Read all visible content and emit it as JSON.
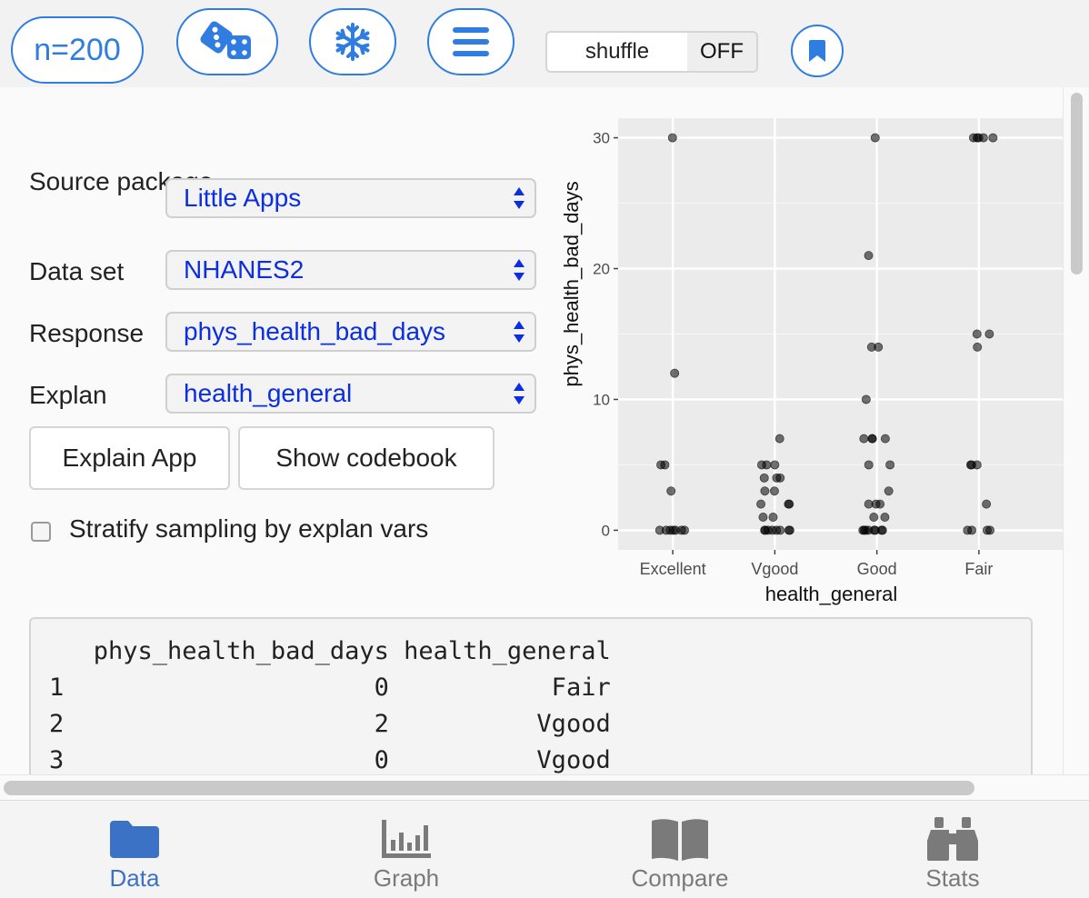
{
  "toolbar": {
    "n_label": "n=200",
    "shuffle_label": "shuffle",
    "shuffle_state": "OFF",
    "icons": [
      "dice-icon",
      "snowflake-icon",
      "menu-icon",
      "bookmark-icon"
    ],
    "accent_color": "#2f7de1"
  },
  "controls": {
    "source_label": "Source package",
    "source_value": "Little Apps",
    "dataset_label": "Data set",
    "dataset_value": "NHANES2",
    "response_label": "Response",
    "response_value": "phys_health_bad_days",
    "explan_label": "Explan",
    "explan_value": "health_general",
    "explain_button": "Explain App",
    "codebook_button": "Show codebook",
    "stratify_label": "Stratify sampling by explan vars",
    "stratify_checked": false
  },
  "chart_data": {
    "type": "scatter",
    "xlabel": "health_general",
    "ylabel": "phys_health_bad_days",
    "categories": [
      "Excellent",
      "Vgood",
      "Good",
      "Fair"
    ],
    "y_ticks": [
      0,
      10,
      20,
      30
    ],
    "ylim": [
      -1.5,
      31.5
    ],
    "jitter": true,
    "grid": true,
    "points": [
      {
        "x": "Excellent",
        "y": 30
      },
      {
        "x": "Excellent",
        "y": 12
      },
      {
        "x": "Excellent",
        "y": 5
      },
      {
        "x": "Excellent",
        "y": 5
      },
      {
        "x": "Excellent",
        "y": 3
      },
      {
        "x": "Excellent",
        "y": 0
      },
      {
        "x": "Excellent",
        "y": 0
      },
      {
        "x": "Excellent",
        "y": 0
      },
      {
        "x": "Excellent",
        "y": 0
      },
      {
        "x": "Excellent",
        "y": 0
      },
      {
        "x": "Excellent",
        "y": 0
      },
      {
        "x": "Excellent",
        "y": 0
      },
      {
        "x": "Vgood",
        "y": 7
      },
      {
        "x": "Vgood",
        "y": 5
      },
      {
        "x": "Vgood",
        "y": 5
      },
      {
        "x": "Vgood",
        "y": 5
      },
      {
        "x": "Vgood",
        "y": 4
      },
      {
        "x": "Vgood",
        "y": 4
      },
      {
        "x": "Vgood",
        "y": 4
      },
      {
        "x": "Vgood",
        "y": 3
      },
      {
        "x": "Vgood",
        "y": 3
      },
      {
        "x": "Vgood",
        "y": 2
      },
      {
        "x": "Vgood",
        "y": 2
      },
      {
        "x": "Vgood",
        "y": 2
      },
      {
        "x": "Vgood",
        "y": 1
      },
      {
        "x": "Vgood",
        "y": 1
      },
      {
        "x": "Vgood",
        "y": 0
      },
      {
        "x": "Vgood",
        "y": 0
      },
      {
        "x": "Vgood",
        "y": 0
      },
      {
        "x": "Vgood",
        "y": 0
      },
      {
        "x": "Vgood",
        "y": 0
      },
      {
        "x": "Vgood",
        "y": 0
      },
      {
        "x": "Vgood",
        "y": 0
      },
      {
        "x": "Vgood",
        "y": 0
      },
      {
        "x": "Good",
        "y": 30
      },
      {
        "x": "Good",
        "y": 21
      },
      {
        "x": "Good",
        "y": 14
      },
      {
        "x": "Good",
        "y": 14
      },
      {
        "x": "Good",
        "y": 10
      },
      {
        "x": "Good",
        "y": 7
      },
      {
        "x": "Good",
        "y": 7
      },
      {
        "x": "Good",
        "y": 7
      },
      {
        "x": "Good",
        "y": 7
      },
      {
        "x": "Good",
        "y": 5
      },
      {
        "x": "Good",
        "y": 5
      },
      {
        "x": "Good",
        "y": 3
      },
      {
        "x": "Good",
        "y": 2
      },
      {
        "x": "Good",
        "y": 2
      },
      {
        "x": "Good",
        "y": 2
      },
      {
        "x": "Good",
        "y": 1
      },
      {
        "x": "Good",
        "y": 1
      },
      {
        "x": "Good",
        "y": 0
      },
      {
        "x": "Good",
        "y": 0
      },
      {
        "x": "Good",
        "y": 0
      },
      {
        "x": "Good",
        "y": 0
      },
      {
        "x": "Good",
        "y": 0
      },
      {
        "x": "Good",
        "y": 0
      },
      {
        "x": "Good",
        "y": 0
      },
      {
        "x": "Good",
        "y": 0
      },
      {
        "x": "Fair",
        "y": 30
      },
      {
        "x": "Fair",
        "y": 30
      },
      {
        "x": "Fair",
        "y": 30
      },
      {
        "x": "Fair",
        "y": 30
      },
      {
        "x": "Fair",
        "y": 30
      },
      {
        "x": "Fair",
        "y": 15
      },
      {
        "x": "Fair",
        "y": 15
      },
      {
        "x": "Fair",
        "y": 14
      },
      {
        "x": "Fair",
        "y": 5
      },
      {
        "x": "Fair",
        "y": 5
      },
      {
        "x": "Fair",
        "y": 5
      },
      {
        "x": "Fair",
        "y": 2
      },
      {
        "x": "Fair",
        "y": 0
      },
      {
        "x": "Fair",
        "y": 0
      },
      {
        "x": "Fair",
        "y": 0
      },
      {
        "x": "Fair",
        "y": 0
      }
    ]
  },
  "table": {
    "columns": [
      "phys_health_bad_days",
      "health_general"
    ],
    "rows": [
      {
        "index": "1",
        "phys_health_bad_days": "0",
        "health_general": "Fair"
      },
      {
        "index": "2",
        "phys_health_bad_days": "2",
        "health_general": "Vgood"
      },
      {
        "index": "3",
        "phys_health_bad_days": "0",
        "health_general": "Vgood"
      }
    ]
  },
  "nav": {
    "items": [
      {
        "label": "Data",
        "icon": "folder-icon",
        "active": true
      },
      {
        "label": "Graph",
        "icon": "bar-chart-icon",
        "active": false
      },
      {
        "label": "Compare",
        "icon": "book-icon",
        "active": false
      },
      {
        "label": "Stats",
        "icon": "binoculars-icon",
        "active": false
      }
    ],
    "active_color": "#3c72c6",
    "inactive_color": "#7a7a7a"
  }
}
